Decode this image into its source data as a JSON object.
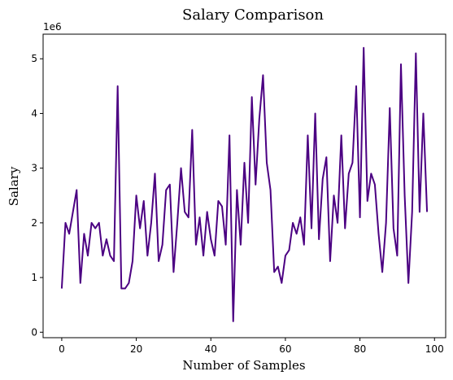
{
  "chart_data": {
    "type": "line",
    "title": "Salary Comparison",
    "xlabel": "Number of Samples",
    "ylabel": "Salary",
    "y_offset_label": "1e6",
    "xlim": [
      -5,
      103
    ],
    "ylim": [
      -0.1,
      5.45
    ],
    "y_scale_factor": 1000000,
    "x_ticks": [
      0,
      20,
      40,
      60,
      80,
      100
    ],
    "y_ticks": [
      0,
      1,
      2,
      3,
      4,
      5
    ],
    "grid": false,
    "line_color": "#4b0082",
    "series": [
      {
        "values": [
          0.8,
          2.0,
          1.8,
          2.2,
          2.6,
          0.9,
          1.8,
          1.4,
          2.0,
          1.9,
          2.0,
          1.4,
          1.7,
          1.4,
          1.3,
          4.5,
          0.8,
          0.8,
          0.9,
          1.3,
          2.5,
          1.9,
          2.4,
          1.4,
          2.0,
          2.9,
          1.3,
          1.6,
          2.6,
          2.7,
          1.1,
          2.0,
          3.0,
          2.2,
          2.1,
          3.7,
          1.6,
          2.1,
          1.4,
          2.2,
          1.7,
          1.4,
          2.4,
          2.3,
          1.6,
          3.6,
          0.2,
          2.6,
          1.6,
          3.1,
          2.0,
          4.3,
          2.7,
          3.9,
          4.7,
          3.1,
          2.6,
          1.1,
          1.2,
          0.9,
          1.4,
          1.5,
          2.0,
          1.8,
          2.1,
          1.6,
          3.6,
          1.9,
          4.0,
          1.7,
          2.8,
          3.2,
          1.3,
          2.5,
          2.0,
          3.6,
          1.9,
          2.9,
          3.1,
          4.5,
          2.1,
          5.2,
          2.4,
          2.9,
          2.7,
          1.8,
          1.1,
          2.0,
          4.1,
          1.9,
          1.4,
          4.9,
          2.5,
          0.9,
          2.2,
          5.1,
          2.2,
          4.0,
          2.2
        ]
      }
    ]
  }
}
